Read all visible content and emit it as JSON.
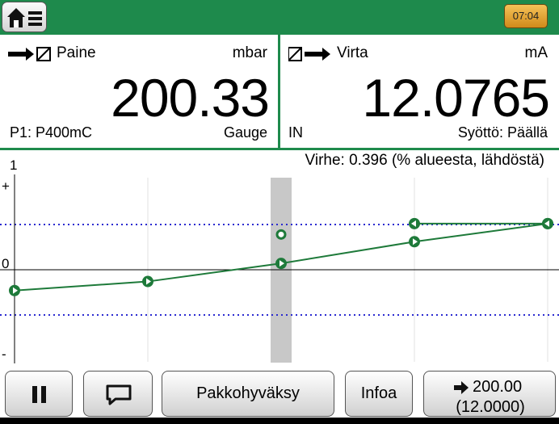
{
  "topbar": {
    "clock": "07:04",
    "home_icon": "home-icon",
    "menu_icon": "menu-icon",
    "battery_color": "#e0a030"
  },
  "left_panel": {
    "label": "Paine",
    "unit": "mbar",
    "value": "200.33",
    "sub_left": "P1: P400mC",
    "sub_right": "Gauge",
    "icon": "measure-arrow-icon"
  },
  "right_panel": {
    "label": "Virta",
    "unit": "mA",
    "value": "12.0765",
    "sub_left": "IN",
    "sub_right": "Syöttö: Päällä",
    "icon": "generate-arrow-icon"
  },
  "chart": {
    "error_text": "Virhe: 0.396 (% alueesta, lähdöstä)",
    "y_top": "1",
    "plus": "+",
    "zero": "0",
    "minus": "-"
  },
  "chart_data": {
    "type": "line",
    "title": "",
    "xlabel": "",
    "ylabel": "",
    "x_points": [
      0,
      25,
      50,
      75,
      100
    ],
    "ylim": [
      -1,
      1
    ],
    "tolerance": [
      0.5,
      -0.5
    ],
    "highlight_x": 50,
    "series": [
      {
        "x": [
          0,
          25,
          50,
          75,
          100
        ],
        "y": [
          -0.23,
          -0.13,
          0.07,
          0.31,
          0.51
        ],
        "direction": "up"
      },
      {
        "x": [
          100,
          75
        ],
        "y": [
          0.51,
          0.51
        ],
        "direction": "down"
      }
    ],
    "extra_points": [
      {
        "x": 50,
        "y": 0.39
      }
    ],
    "colors": {
      "line": "#1e7a3a",
      "tolerance": "#2a2ad0",
      "highlight": "#c8c8c8"
    }
  },
  "buttons": {
    "pause_icon": "pause-icon",
    "comment_icon": "comment-icon",
    "force_accept": "Pakkohyväksy",
    "info": "Infoa",
    "next_value": "200.00",
    "next_value_ma": "(12.0000)",
    "arrow_icon": "arrow-right-icon"
  }
}
